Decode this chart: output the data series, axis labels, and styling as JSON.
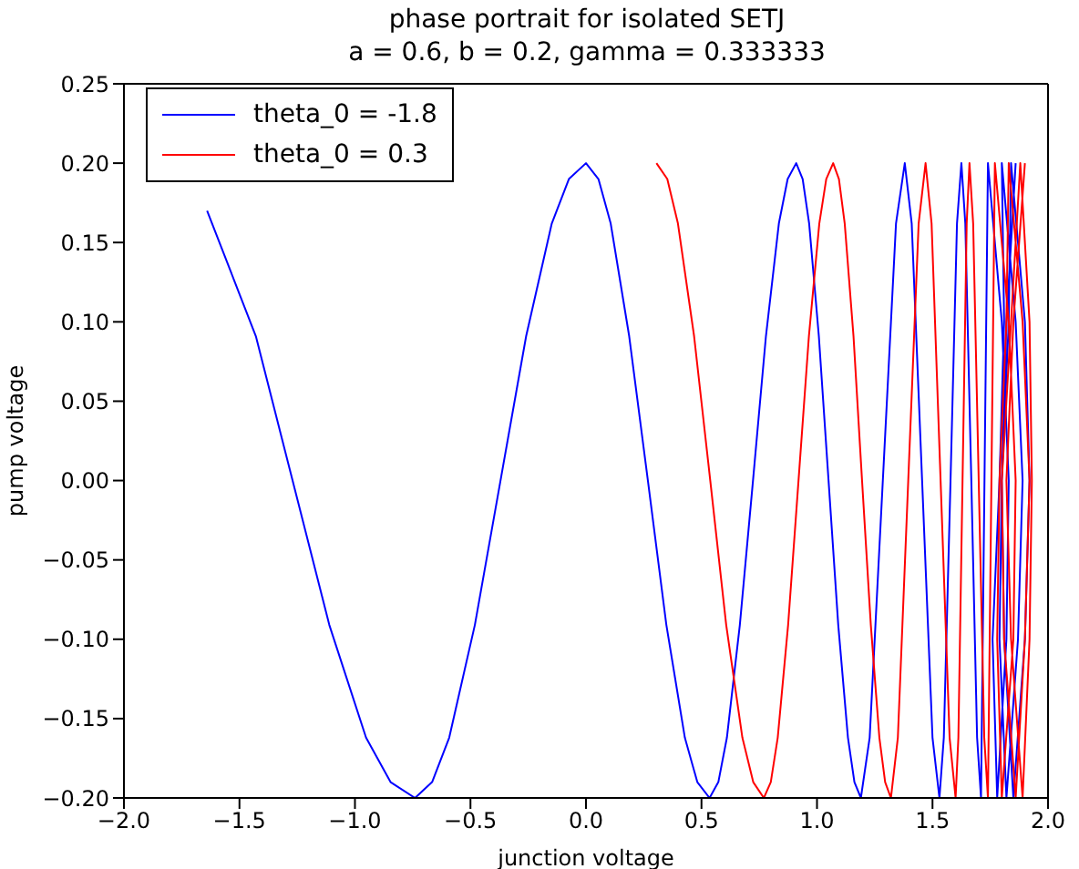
{
  "chart_data": {
    "type": "line",
    "title": "phase portrait for isolated SETJ",
    "subtitle": "a = 0.6, b = 0.2, gamma = 0.333333",
    "xlabel": "junction voltage",
    "ylabel": "pump voltage",
    "xlim": [
      -2.0,
      2.0
    ],
    "ylim": [
      -0.2,
      0.25
    ],
    "xticks": [
      {
        "value": -2,
        "label": "−2.0"
      },
      {
        "value": -1.5,
        "label": "−1.5"
      },
      {
        "value": -1,
        "label": "−1.0"
      },
      {
        "value": -0.5,
        "label": "−0.5"
      },
      {
        "value": 0,
        "label": "0.0"
      },
      {
        "value": 0.5,
        "label": "0.5"
      },
      {
        "value": 1,
        "label": "1.0"
      },
      {
        "value": 1.5,
        "label": "1.5"
      },
      {
        "value": 2,
        "label": "2.0"
      }
    ],
    "yticks": [
      {
        "value": -0.2,
        "label": "−0.20"
      },
      {
        "value": -0.15,
        "label": "−0.15"
      },
      {
        "value": -0.1,
        "label": "−0.10"
      },
      {
        "value": -0.05,
        "label": "−0.05"
      },
      {
        "value": 0,
        "label": "0.00"
      },
      {
        "value": 0.05,
        "label": "0.05"
      },
      {
        "value": 0.1,
        "label": "0.10"
      },
      {
        "value": 0.15,
        "label": "0.15"
      },
      {
        "value": 0.2,
        "label": "0.20"
      },
      {
        "value": 0.25,
        "label": "0.25"
      }
    ],
    "legend": "top left",
    "series": [
      {
        "name": "theta_0 = -1.8",
        "color": "#0000ff",
        "x": [
          -1.64,
          -1.429,
          -1.27,
          -1.111,
          -0.952,
          -0.846,
          -0.74,
          -0.666,
          -0.592,
          -0.481,
          -0.37,
          -0.259,
          -0.148,
          -0.074,
          0.0,
          0.054,
          0.107,
          0.187,
          0.268,
          0.348,
          0.428,
          0.482,
          0.535,
          0.573,
          0.61,
          0.666,
          0.723,
          0.779,
          0.835,
          0.873,
          0.91,
          0.938,
          0.966,
          1.008,
          1.05,
          1.092,
          1.134,
          1.162,
          1.19,
          1.228,
          1.285,
          1.342,
          1.38,
          1.41,
          1.455,
          1.5,
          1.53,
          1.549,
          1.578,
          1.606,
          1.625,
          1.642,
          1.668,
          1.693,
          1.71,
          1.725,
          1.74,
          1.8,
          1.83,
          1.82,
          1.78,
          1.76,
          1.79,
          1.81,
          1.8,
          1.86,
          1.89,
          1.87,
          1.82,
          1.79,
          1.8,
          1.83,
          1.84,
          1.9,
          1.92,
          1.9,
          1.85,
          1.81,
          1.8,
          1.82,
          1.86
        ],
        "values": [
          0.17,
          0.091,
          0,
          -0.091,
          -0.162,
          -0.19,
          -0.2,
          -0.19,
          -0.162,
          -0.091,
          0,
          0.091,
          0.162,
          0.19,
          0.2,
          0.19,
          0.162,
          0.091,
          0,
          -0.091,
          -0.162,
          -0.19,
          -0.2,
          -0.19,
          -0.162,
          -0.091,
          0,
          0.091,
          0.162,
          0.19,
          0.2,
          0.19,
          0.162,
          0.091,
          0,
          -0.091,
          -0.162,
          -0.19,
          -0.2,
          -0.162,
          0,
          0.162,
          0.2,
          0.162,
          0,
          -0.162,
          -0.2,
          -0.162,
          0,
          0.162,
          0.2,
          0.162,
          0,
          -0.162,
          -0.2,
          0,
          0.2,
          0.1,
          0,
          -0.1,
          -0.2,
          -0.1,
          0,
          0.1,
          0.2,
          0.1,
          0,
          -0.1,
          -0.2,
          -0.1,
          0,
          0.1,
          0.2,
          0.1,
          0,
          -0.1,
          -0.2,
          -0.1,
          0,
          0.1,
          0.2
        ]
      },
      {
        "name": "theta_0 = 0.3",
        "color": "#ff0000",
        "x": [
          0.305,
          0.352,
          0.398,
          0.468,
          0.538,
          0.607,
          0.677,
          0.724,
          0.77,
          0.8,
          0.83,
          0.875,
          0.92,
          0.965,
          1.01,
          1.04,
          1.07,
          1.095,
          1.12,
          1.158,
          1.195,
          1.233,
          1.27,
          1.295,
          1.32,
          1.35,
          1.395,
          1.44,
          1.47,
          1.496,
          1.535,
          1.574,
          1.6,
          1.612,
          1.63,
          1.648,
          1.66,
          1.676,
          1.7,
          1.724,
          1.74,
          1.755,
          1.77,
          1.83,
          1.86,
          1.85,
          1.8,
          1.78,
          1.79,
          1.82,
          1.83,
          1.89,
          1.92,
          1.9,
          1.86,
          1.81,
          1.8,
          1.84,
          1.88,
          1.92,
          1.93,
          1.92,
          1.89,
          1.84,
          1.82,
          1.85,
          1.9
        ],
        "values": [
          0.2,
          0.19,
          0.162,
          0.091,
          0,
          -0.091,
          -0.162,
          -0.19,
          -0.2,
          -0.19,
          -0.162,
          -0.091,
          0,
          0.091,
          0.162,
          0.19,
          0.2,
          0.19,
          0.162,
          0.091,
          0,
          -0.091,
          -0.162,
          -0.19,
          -0.2,
          -0.162,
          0,
          0.162,
          0.2,
          0.162,
          0,
          -0.162,
          -0.2,
          -0.162,
          0,
          0.162,
          0.2,
          0.162,
          0,
          -0.162,
          -0.2,
          0,
          0.2,
          0.1,
          0,
          -0.1,
          -0.2,
          -0.1,
          0,
          0.1,
          0.2,
          0.1,
          0,
          -0.1,
          -0.2,
          -0.1,
          0,
          0.1,
          0.2,
          0.1,
          0,
          -0.1,
          -0.2,
          -0.1,
          0,
          0.1,
          0.2
        ]
      }
    ]
  }
}
